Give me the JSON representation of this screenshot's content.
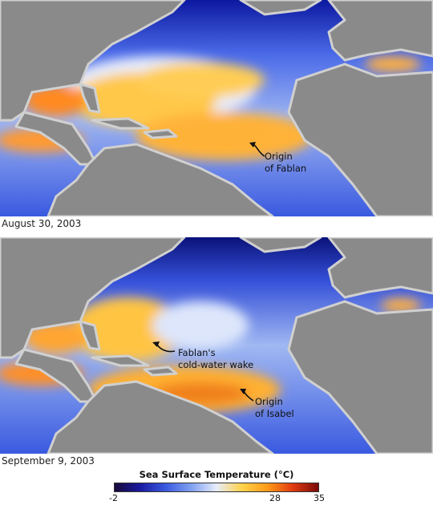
{
  "maps": [
    {
      "date": "August 30, 2003",
      "annotations": [
        {
          "lines": [
            "Origin",
            "of Fablan"
          ]
        }
      ]
    },
    {
      "date": "September 9, 2003",
      "annotations": [
        {
          "lines": [
            "Fablan's",
            "cold-water wake"
          ]
        },
        {
          "lines": [
            "Origin",
            "of Isabel"
          ]
        }
      ]
    }
  ],
  "legend": {
    "title": "Sea Surface Temperature (°C)",
    "ticks": [
      "-2",
      "28",
      "35"
    ],
    "gradient_colors": [
      "#1a0a3a",
      "#1a1aa0",
      "#3a5ae0",
      "#7fa0f0",
      "#e6ecfa",
      "#ffd24a",
      "#ff9a1a",
      "#e03a10",
      "#7a0a0a"
    ]
  },
  "colors": {
    "land": "#8a8a8a",
    "coast": "#cfcfcf",
    "deep_water": "#1c2fc0",
    "warm": "#ffb43a"
  }
}
